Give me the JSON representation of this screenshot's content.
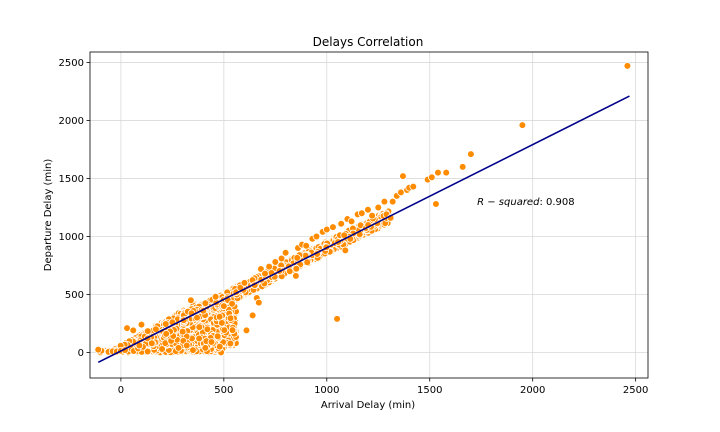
{
  "chart_data": {
    "type": "scatter",
    "title": "Delays Correlation",
    "xlabel": "Arrival Delay (min)",
    "ylabel": "Departure Delay (min)",
    "xlim": [
      -150,
      2560
    ],
    "ylim": [
      -220,
      2590
    ],
    "xticks": [
      0,
      500,
      1000,
      1500,
      2000,
      2500
    ],
    "yticks": [
      0,
      500,
      1000,
      1500,
      2000,
      2500
    ],
    "grid": true,
    "annotation": {
      "label": "R - squared",
      "value": "0.908",
      "x": 1730,
      "y": 1270
    },
    "colors": {
      "points": "#ff8c00",
      "point_edge": "#ffffff",
      "fit_line": "#00008b",
      "grid": "#d9d9d9"
    },
    "series": [
      {
        "values": [
          [
            -110,
            25
          ],
          [
            -60,
            5
          ],
          [
            -40,
            10
          ],
          [
            -20,
            8
          ],
          [
            0,
            15
          ],
          [
            20,
            20
          ],
          [
            30,
            210
          ],
          [
            60,
            190
          ],
          [
            90,
            60
          ],
          [
            100,
            240
          ],
          [
            130,
            120
          ],
          [
            150,
            80
          ],
          [
            170,
            200
          ],
          [
            200,
            30
          ],
          [
            220,
            160
          ],
          [
            250,
            260
          ],
          [
            280,
            40
          ],
          [
            300,
            180
          ],
          [
            320,
            60
          ],
          [
            340,
            450
          ],
          [
            350,
            20
          ],
          [
            370,
            300
          ],
          [
            380,
            120
          ],
          [
            400,
            360
          ],
          [
            410,
            40
          ],
          [
            420,
            200
          ],
          [
            440,
            90
          ],
          [
            460,
            480
          ],
          [
            470,
            140
          ],
          [
            480,
            50
          ],
          [
            500,
            400
          ],
          [
            520,
            450
          ],
          [
            540,
            420
          ],
          [
            560,
            520
          ],
          [
            580,
            560
          ],
          [
            600,
            600
          ],
          [
            610,
            190
          ],
          [
            640,
            320
          ],
          [
            650,
            580
          ],
          [
            660,
            470
          ],
          [
            670,
            430
          ],
          [
            680,
            720
          ],
          [
            700,
            680
          ],
          [
            720,
            740
          ],
          [
            750,
            780
          ],
          [
            780,
            810
          ],
          [
            800,
            860
          ],
          [
            820,
            700
          ],
          [
            850,
            660
          ],
          [
            860,
            900
          ],
          [
            880,
            930
          ],
          [
            900,
            920
          ],
          [
            930,
            980
          ],
          [
            950,
            1000
          ],
          [
            980,
            1040
          ],
          [
            1000,
            1060
          ],
          [
            1030,
            1080
          ],
          [
            1050,
            290
          ],
          [
            1070,
            1110
          ],
          [
            1090,
            880
          ],
          [
            1100,
            1150
          ],
          [
            1120,
            1130
          ],
          [
            1150,
            1190
          ],
          [
            1170,
            1200
          ],
          [
            1200,
            1230
          ],
          [
            1220,
            1180
          ],
          [
            1250,
            1250
          ],
          [
            1280,
            1300
          ],
          [
            1290,
            1190
          ],
          [
            1310,
            1160
          ],
          [
            1320,
            1300
          ],
          [
            1340,
            1350
          ],
          [
            1360,
            1380
          ],
          [
            1370,
            1520
          ],
          [
            1390,
            1400
          ],
          [
            1400,
            1420
          ],
          [
            1420,
            1430
          ],
          [
            1490,
            1490
          ],
          [
            1510,
            1510
          ],
          [
            1530,
            1280
          ],
          [
            1540,
            1550
          ],
          [
            1580,
            1550
          ],
          [
            1660,
            1600
          ],
          [
            1700,
            1710
          ],
          [
            1950,
            1960
          ],
          [
            2460,
            2470
          ]
        ]
      }
    ],
    "fit_line": {
      "x": [
        -110,
        2470
      ],
      "y": [
        -85,
        2210
      ]
    },
    "dense_bands": [
      {
        "x_from": -100,
        "x_to": 500,
        "y_from": 0,
        "y_to": 260,
        "count": 1200
      },
      {
        "x_from": 200,
        "x_to": 560,
        "y_from": 60,
        "y_to": 420,
        "count": 700
      },
      {
        "along_fit": true,
        "x_from": 300,
        "x_to": 1300,
        "spread": 55,
        "count": 1000
      }
    ]
  }
}
